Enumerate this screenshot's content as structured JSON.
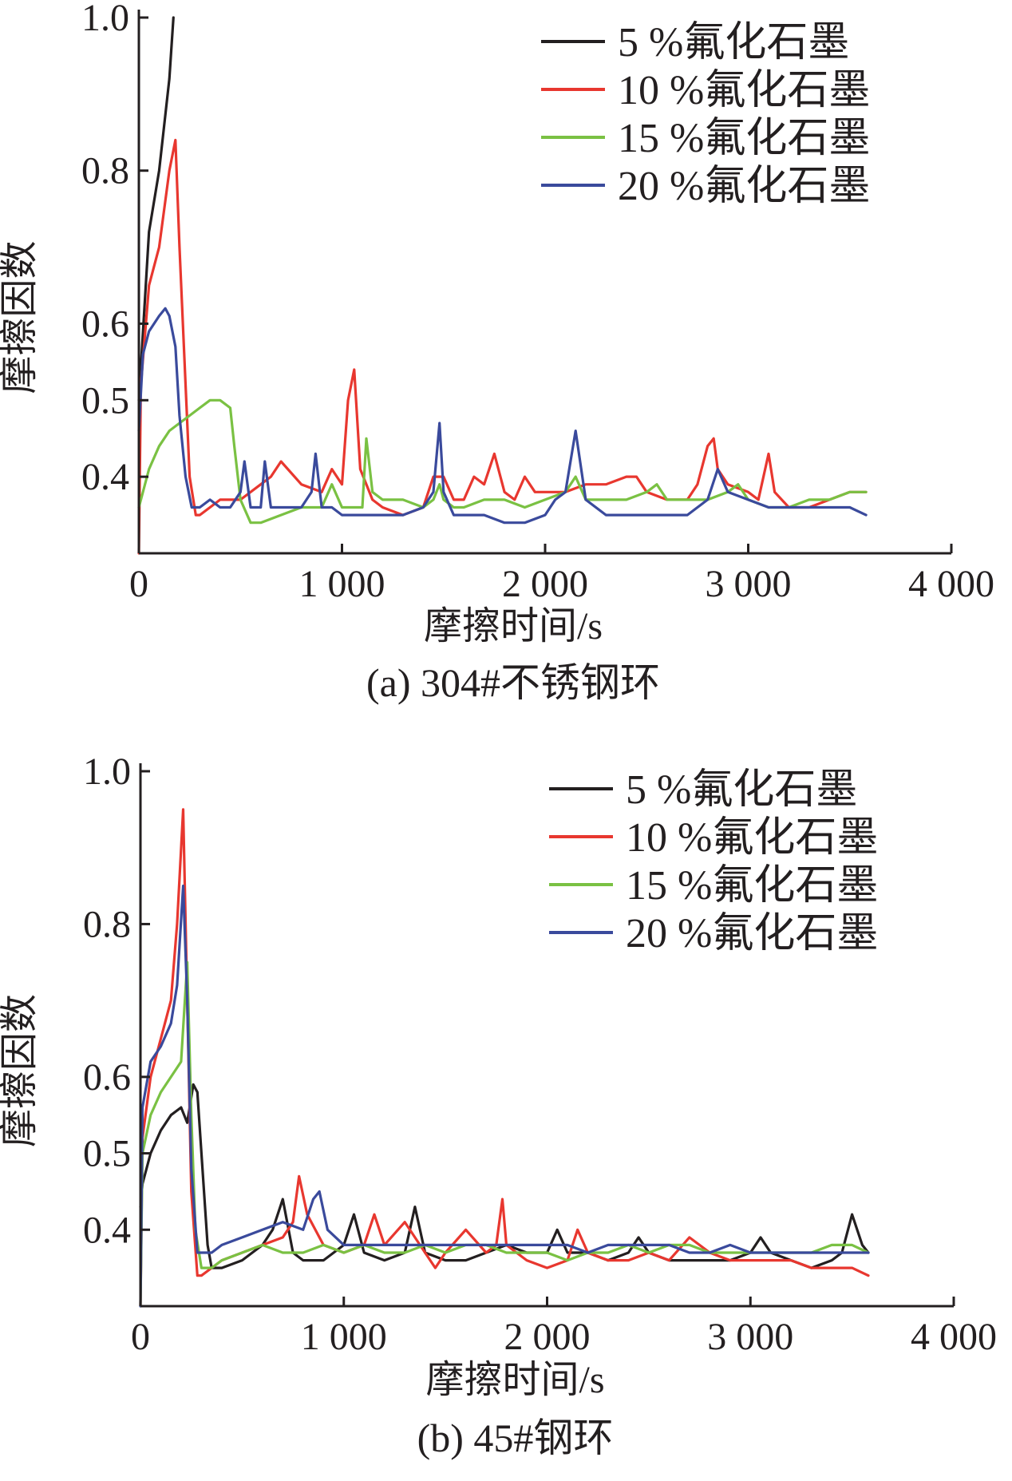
{
  "chart_data": [
    {
      "type": "line",
      "caption": "(a) 304#不锈钢环",
      "xlabel": "摩擦时间/s",
      "ylabel": "摩擦因数",
      "xlim": [
        0,
        4000
      ],
      "ylim": [
        0.3,
        1.0
      ],
      "xticks": [
        0,
        1000,
        2000,
        3000,
        4000
      ],
      "xtick_labels": [
        "0",
        "1 000",
        "2 000",
        "3 000",
        "4 000"
      ],
      "yticks": [
        0.4,
        0.5,
        0.6,
        0.8,
        1.0
      ],
      "ytick_labels": [
        "0.4",
        "0.5",
        "0.6",
        "0.8",
        "1.0"
      ],
      "grid": false,
      "legend_position": "top-right",
      "series": [
        {
          "name": "5 %氟化石墨",
          "color": "#231f20",
          "x": [
            0,
            50,
            100,
            150,
            170
          ],
          "y": [
            0.5,
            0.72,
            0.8,
            0.92,
            1.0
          ]
        },
        {
          "name": "10 %氟化石墨",
          "color": "#e8372f",
          "x": [
            0,
            10,
            50,
            100,
            150,
            180,
            200,
            250,
            280,
            300,
            350,
            400,
            500,
            600,
            650,
            700,
            800,
            900,
            950,
            1000,
            1030,
            1060,
            1090,
            1150,
            1200,
            1300,
            1400,
            1450,
            1500,
            1550,
            1600,
            1650,
            1700,
            1750,
            1800,
            1850,
            1900,
            1950,
            2000,
            2100,
            2200,
            2300,
            2400,
            2450,
            2500,
            2600,
            2700,
            2750,
            2800,
            2830,
            2850,
            2900,
            3000,
            3050,
            3100,
            3130,
            3200,
            3300,
            3400,
            3500,
            3580
          ],
          "y": [
            0.3,
            0.52,
            0.65,
            0.7,
            0.8,
            0.84,
            0.7,
            0.4,
            0.35,
            0.35,
            0.36,
            0.37,
            0.37,
            0.39,
            0.4,
            0.42,
            0.39,
            0.38,
            0.41,
            0.39,
            0.5,
            0.54,
            0.41,
            0.37,
            0.36,
            0.35,
            0.36,
            0.4,
            0.4,
            0.37,
            0.37,
            0.4,
            0.39,
            0.43,
            0.38,
            0.37,
            0.4,
            0.38,
            0.38,
            0.38,
            0.39,
            0.39,
            0.4,
            0.4,
            0.38,
            0.37,
            0.37,
            0.39,
            0.44,
            0.45,
            0.41,
            0.39,
            0.38,
            0.37,
            0.43,
            0.38,
            0.36,
            0.36,
            0.37,
            0.38,
            0.38
          ]
        },
        {
          "name": "15 %氟化石墨",
          "color": "#7ac143",
          "x": [
            0,
            50,
            100,
            150,
            200,
            250,
            300,
            350,
            400,
            450,
            470,
            500,
            550,
            600,
            700,
            800,
            900,
            950,
            1000,
            1050,
            1100,
            1120,
            1150,
            1200,
            1300,
            1400,
            1450,
            1480,
            1500,
            1550,
            1600,
            1700,
            1800,
            1900,
            2000,
            2100,
            2150,
            2200,
            2300,
            2400,
            2500,
            2550,
            2600,
            2700,
            2800,
            2900,
            2950,
            3000,
            3100,
            3200,
            3300,
            3400,
            3500,
            3580
          ],
          "y": [
            0.36,
            0.41,
            0.44,
            0.46,
            0.47,
            0.48,
            0.49,
            0.5,
            0.5,
            0.49,
            0.44,
            0.37,
            0.34,
            0.34,
            0.35,
            0.36,
            0.36,
            0.39,
            0.36,
            0.36,
            0.36,
            0.45,
            0.38,
            0.37,
            0.37,
            0.36,
            0.37,
            0.39,
            0.37,
            0.36,
            0.36,
            0.37,
            0.37,
            0.36,
            0.37,
            0.38,
            0.4,
            0.37,
            0.37,
            0.37,
            0.38,
            0.39,
            0.37,
            0.37,
            0.37,
            0.38,
            0.39,
            0.37,
            0.36,
            0.36,
            0.37,
            0.37,
            0.38,
            0.38
          ]
        },
        {
          "name": "20 %氟化石墨",
          "color": "#3a4a9c",
          "x": [
            0,
            20,
            50,
            100,
            130,
            150,
            180,
            200,
            230,
            260,
            300,
            350,
            400,
            450,
            500,
            520,
            550,
            600,
            620,
            650,
            700,
            800,
            850,
            870,
            900,
            950,
            1000,
            1050,
            1100,
            1200,
            1300,
            1400,
            1450,
            1480,
            1500,
            1550,
            1600,
            1700,
            1800,
            1900,
            2000,
            2050,
            2100,
            2150,
            2200,
            2300,
            2400,
            2500,
            2600,
            2700,
            2750,
            2800,
            2850,
            2900,
            3000,
            3100,
            3200,
            3300,
            3400,
            3500,
            3580
          ],
          "y": [
            0.46,
            0.56,
            0.59,
            0.61,
            0.62,
            0.61,
            0.57,
            0.48,
            0.4,
            0.36,
            0.36,
            0.37,
            0.36,
            0.36,
            0.38,
            0.42,
            0.36,
            0.36,
            0.42,
            0.36,
            0.36,
            0.36,
            0.38,
            0.43,
            0.36,
            0.36,
            0.35,
            0.35,
            0.35,
            0.35,
            0.35,
            0.36,
            0.38,
            0.47,
            0.38,
            0.35,
            0.35,
            0.35,
            0.34,
            0.34,
            0.35,
            0.37,
            0.38,
            0.46,
            0.37,
            0.35,
            0.35,
            0.35,
            0.35,
            0.35,
            0.36,
            0.37,
            0.41,
            0.38,
            0.37,
            0.36,
            0.36,
            0.36,
            0.36,
            0.36,
            0.35
          ]
        }
      ]
    },
    {
      "type": "line",
      "caption": "(b) 45#钢环",
      "xlabel": "摩擦时间/s",
      "ylabel": "摩擦因数",
      "xlim": [
        0,
        4000
      ],
      "ylim": [
        0.3,
        1.0
      ],
      "xticks": [
        0,
        1000,
        2000,
        3000,
        4000
      ],
      "xtick_labels": [
        "0",
        "1 000",
        "2 000",
        "3 000",
        "4 000"
      ],
      "yticks": [
        0.4,
        0.5,
        0.6,
        0.8,
        1.0
      ],
      "ytick_labels": [
        "0.4",
        "0.5",
        "0.6",
        "0.8",
        "1.0"
      ],
      "grid": false,
      "legend_position": "top-right",
      "series": [
        {
          "name": "5 %氟化石墨",
          "color": "#231f20",
          "x": [
            0,
            10,
            50,
            100,
            150,
            200,
            230,
            260,
            280,
            300,
            330,
            350,
            400,
            500,
            550,
            600,
            650,
            700,
            750,
            800,
            900,
            1000,
            1050,
            1100,
            1200,
            1300,
            1350,
            1400,
            1500,
            1600,
            1700,
            1800,
            1900,
            2000,
            2050,
            2100,
            2200,
            2300,
            2400,
            2450,
            2500,
            2600,
            2700,
            2800,
            2900,
            3000,
            3050,
            3100,
            3200,
            3300,
            3400,
            3450,
            3500,
            3550,
            3580
          ],
          "y": [
            0.43,
            0.46,
            0.5,
            0.53,
            0.55,
            0.56,
            0.54,
            0.59,
            0.58,
            0.5,
            0.38,
            0.35,
            0.35,
            0.36,
            0.37,
            0.38,
            0.4,
            0.44,
            0.37,
            0.36,
            0.36,
            0.38,
            0.42,
            0.37,
            0.36,
            0.37,
            0.43,
            0.37,
            0.36,
            0.36,
            0.37,
            0.38,
            0.37,
            0.37,
            0.4,
            0.37,
            0.37,
            0.36,
            0.37,
            0.39,
            0.37,
            0.36,
            0.36,
            0.36,
            0.36,
            0.37,
            0.39,
            0.37,
            0.36,
            0.35,
            0.36,
            0.37,
            0.42,
            0.38,
            0.37
          ]
        },
        {
          "name": "10 %氟化石墨",
          "color": "#e8372f",
          "x": [
            0,
            10,
            50,
            100,
            150,
            180,
            210,
            230,
            250,
            280,
            300,
            350,
            400,
            500,
            600,
            700,
            750,
            780,
            820,
            900,
            1000,
            1100,
            1150,
            1200,
            1300,
            1400,
            1450,
            1500,
            1600,
            1700,
            1750,
            1780,
            1800,
            1900,
            2000,
            2100,
            2150,
            2200,
            2300,
            2400,
            2500,
            2600,
            2700,
            2800,
            2900,
            3000,
            3100,
            3200,
            3300,
            3400,
            3500,
            3580
          ],
          "y": [
            0.3,
            0.52,
            0.6,
            0.65,
            0.7,
            0.8,
            0.95,
            0.7,
            0.45,
            0.34,
            0.34,
            0.35,
            0.36,
            0.37,
            0.38,
            0.39,
            0.41,
            0.47,
            0.42,
            0.38,
            0.37,
            0.38,
            0.42,
            0.38,
            0.41,
            0.37,
            0.35,
            0.37,
            0.4,
            0.37,
            0.38,
            0.44,
            0.38,
            0.36,
            0.35,
            0.36,
            0.4,
            0.37,
            0.36,
            0.36,
            0.37,
            0.36,
            0.39,
            0.37,
            0.36,
            0.36,
            0.36,
            0.36,
            0.35,
            0.35,
            0.35,
            0.34
          ]
        },
        {
          "name": "15 %氟化石墨",
          "color": "#7ac143",
          "x": [
            0,
            10,
            50,
            100,
            150,
            200,
            230,
            250,
            270,
            300,
            350,
            400,
            500,
            600,
            700,
            800,
            900,
            1000,
            1100,
            1200,
            1300,
            1400,
            1500,
            1600,
            1700,
            1800,
            1900,
            2000,
            2100,
            2200,
            2300,
            2400,
            2500,
            2600,
            2700,
            2800,
            2900,
            3000,
            3100,
            3200,
            3300,
            3400,
            3500,
            3580
          ],
          "y": [
            0.3,
            0.5,
            0.55,
            0.58,
            0.6,
            0.62,
            0.75,
            0.55,
            0.4,
            0.35,
            0.35,
            0.36,
            0.37,
            0.38,
            0.37,
            0.37,
            0.38,
            0.37,
            0.38,
            0.37,
            0.37,
            0.38,
            0.37,
            0.38,
            0.38,
            0.37,
            0.37,
            0.37,
            0.36,
            0.37,
            0.37,
            0.38,
            0.37,
            0.38,
            0.38,
            0.37,
            0.37,
            0.37,
            0.37,
            0.37,
            0.37,
            0.38,
            0.38,
            0.37
          ]
        },
        {
          "name": "20 %氟化石墨",
          "color": "#3a4a9c",
          "x": [
            0,
            10,
            50,
            100,
            150,
            180,
            210,
            230,
            250,
            280,
            300,
            350,
            400,
            500,
            600,
            700,
            800,
            850,
            880,
            920,
            1000,
            1100,
            1200,
            1300,
            1400,
            1500,
            1600,
            1700,
            1800,
            1900,
            2000,
            2100,
            2200,
            2300,
            2400,
            2500,
            2600,
            2700,
            2800,
            2900,
            3000,
            3100,
            3200,
            3300,
            3400,
            3500,
            3580
          ],
          "y": [
            0.3,
            0.56,
            0.62,
            0.64,
            0.67,
            0.72,
            0.85,
            0.7,
            0.48,
            0.37,
            0.37,
            0.37,
            0.38,
            0.39,
            0.4,
            0.41,
            0.4,
            0.44,
            0.45,
            0.4,
            0.38,
            0.38,
            0.38,
            0.38,
            0.38,
            0.38,
            0.38,
            0.38,
            0.38,
            0.38,
            0.38,
            0.38,
            0.37,
            0.38,
            0.38,
            0.38,
            0.38,
            0.37,
            0.37,
            0.38,
            0.37,
            0.37,
            0.37,
            0.37,
            0.37,
            0.37,
            0.37
          ]
        }
      ]
    }
  ]
}
